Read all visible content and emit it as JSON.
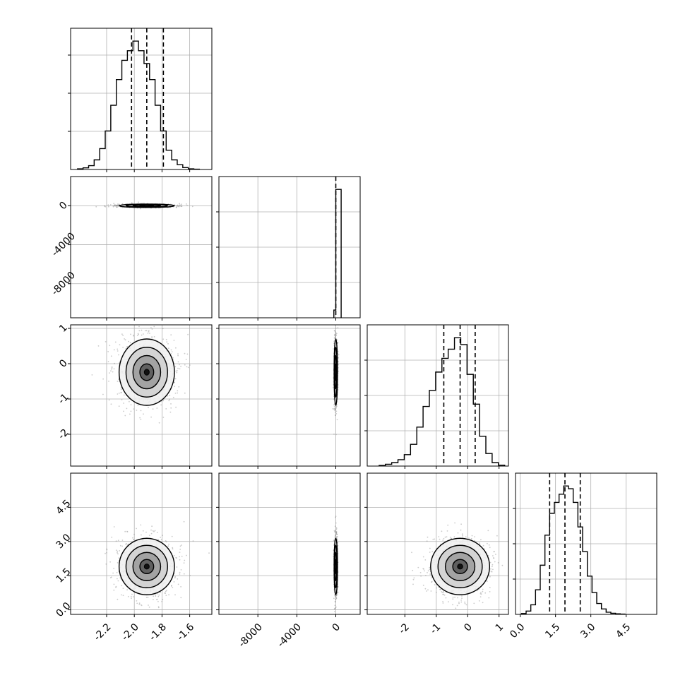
{
  "figure": {
    "type": "corner_plot",
    "background": "#ffffff",
    "grid": true,
    "colors": {
      "line": "#000000",
      "grid": "#b0b0b0",
      "points": "#8c8c8c"
    }
  },
  "chart_data": [
    {
      "type": "histogram",
      "row": 0,
      "col": 0,
      "param": "p1",
      "xlim": [
        -2.46,
        -1.44
      ],
      "bin_edges": [
        -2.41,
        -2.37,
        -2.33,
        -2.29,
        -2.25,
        -2.21,
        -2.17,
        -2.13,
        -2.09,
        -2.05,
        -2.01,
        -1.97,
        -1.93,
        -1.89,
        -1.85,
        -1.81,
        -1.77,
        -1.73,
        -1.69,
        -1.65,
        -1.61,
        -1.57,
        -1.53
      ],
      "counts": [
        2,
        5,
        12,
        30,
        65,
        120,
        200,
        280,
        340,
        370,
        400,
        370,
        330,
        280,
        200,
        120,
        60,
        30,
        15,
        6,
        2,
        1
      ],
      "quantiles": [
        -2.02,
        -1.91,
        -1.79
      ],
      "yticks_relative": [
        0.27,
        0.54,
        0.81
      ]
    },
    {
      "type": "histogram",
      "row": 1,
      "col": 1,
      "param": "p2",
      "xlim": [
        -12000,
        2500
      ],
      "bin_edges": [
        -200,
        0,
        550
      ],
      "counts": [
        120,
        2000
      ],
      "quantiles": [
        0
      ],
      "xticks": [
        "-8000",
        "-4000",
        "0"
      ]
    },
    {
      "type": "histogram",
      "row": 2,
      "col": 2,
      "param": "p3",
      "xlim": [
        -3.2,
        1.3
      ],
      "bin_edges": [
        -2.82,
        -2.62,
        -2.42,
        -2.22,
        -2.02,
        -1.82,
        -1.62,
        -1.42,
        -1.22,
        -1.02,
        -0.82,
        -0.62,
        -0.42,
        -0.22,
        -0.02,
        0.18,
        0.38,
        0.58,
        0.78,
        0.98,
        1.18
      ],
      "counts": [
        3,
        8,
        15,
        28,
        50,
        95,
        170,
        260,
        330,
        410,
        470,
        510,
        560,
        530,
        400,
        270,
        130,
        55,
        15,
        4
      ],
      "quantiles": [
        -0.76,
        -0.24,
        0.24
      ],
      "xticks": [
        "-2",
        "-1",
        "0",
        "1"
      ]
    },
    {
      "type": "histogram",
      "row": 3,
      "col": 3,
      "param": "p4",
      "xlim": [
        -0.2,
        5.8
      ],
      "bin_edges": [
        0.05,
        0.25,
        0.45,
        0.65,
        0.85,
        1.05,
        1.25,
        1.45,
        1.65,
        1.85,
        2.05,
        2.25,
        2.45,
        2.65,
        2.85,
        3.05,
        3.25,
        3.45,
        3.65,
        3.85,
        4.05,
        4.25,
        4.45
      ],
      "counts": [
        3,
        12,
        35,
        90,
        180,
        290,
        370,
        410,
        440,
        470,
        460,
        410,
        320,
        230,
        140,
        80,
        40,
        20,
        8,
        4,
        2,
        1
      ],
      "quantiles": [
        1.25,
        1.9,
        2.55
      ],
      "xticks": [
        "0.0",
        "1.5",
        "3.0",
        "4.5"
      ]
    },
    {
      "type": "scatter_density",
      "row": 1,
      "col": 0,
      "x_param": "p1",
      "y_param": "p2",
      "xlim": [
        -2.46,
        -1.44
      ],
      "ylim": [
        -11500,
        3000
      ],
      "center": [
        -1.91,
        0
      ],
      "sigma": [
        0.1,
        40
      ],
      "yticks": [
        "0",
        "-4000",
        "-8000"
      ]
    },
    {
      "type": "scatter_density",
      "row": 2,
      "col": 0,
      "x_param": "p1",
      "y_param": "p3",
      "xlim": [
        -2.46,
        -1.44
      ],
      "ylim": [
        -2.9,
        1.1
      ],
      "center": [
        -1.91,
        -0.24
      ],
      "sigma": [
        0.1,
        0.47
      ],
      "yticks": [
        "1",
        "0",
        "-1",
        "-2"
      ]
    },
    {
      "type": "scatter_density",
      "row": 2,
      "col": 1,
      "x_param": "p2",
      "y_param": "p3",
      "xlim": [
        -12000,
        2500
      ],
      "ylim": [
        -2.9,
        1.1
      ],
      "center": [
        0,
        -0.24
      ],
      "sigma": [
        40,
        0.47
      ]
    },
    {
      "type": "scatter_density",
      "row": 3,
      "col": 0,
      "x_param": "p1",
      "y_param": "p4",
      "xlim": [
        -2.46,
        -1.44
      ],
      "ylim": [
        -0.2,
        6.0
      ],
      "center": [
        -1.91,
        1.9
      ],
      "sigma": [
        0.1,
        0.62
      ],
      "yticks": [
        "4.5",
        "3.0",
        "1.5",
        "0.0"
      ],
      "xticks": [
        "-2.2",
        "-2.0",
        "-1.8",
        "-1.6"
      ]
    },
    {
      "type": "scatter_density",
      "row": 3,
      "col": 1,
      "x_param": "p2",
      "y_param": "p4",
      "xlim": [
        -12000,
        2500
      ],
      "ylim": [
        -0.2,
        6.0
      ],
      "center": [
        0,
        1.9
      ],
      "sigma": [
        40,
        0.62
      ],
      "xticks": [
        "-8000",
        "-4000",
        "0"
      ]
    },
    {
      "type": "scatter_density",
      "row": 3,
      "col": 2,
      "x_param": "p3",
      "y_param": "p4",
      "xlim": [
        -3.2,
        1.3
      ],
      "ylim": [
        -0.2,
        6.0
      ],
      "center": [
        -0.24,
        1.9
      ],
      "sigma": [
        0.47,
        0.62
      ],
      "xticks": [
        "-2",
        "-1",
        "0",
        "1"
      ]
    }
  ]
}
